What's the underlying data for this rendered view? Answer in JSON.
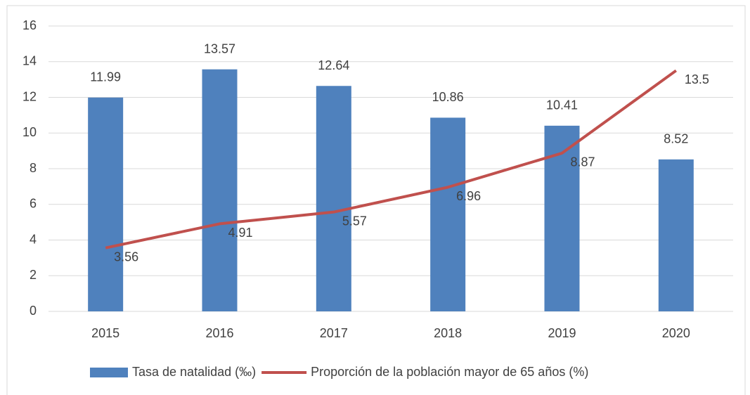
{
  "chart_data": {
    "type": "bar",
    "categories": [
      "2015",
      "2016",
      "2017",
      "2018",
      "2019",
      "2020"
    ],
    "series": [
      {
        "name": "Tasa de natalidad (‰)",
        "type": "bar",
        "color": "#4f81bd",
        "values": [
          11.99,
          13.57,
          12.64,
          10.86,
          10.41,
          8.52
        ]
      },
      {
        "name": "Proporción de la población mayor de 65 años (%)",
        "type": "line",
        "color": "#c0504d",
        "values": [
          3.56,
          4.91,
          5.57,
          6.96,
          8.87,
          13.5
        ]
      }
    ],
    "ylim": [
      0,
      16
    ],
    "yticks": [
      0,
      2,
      4,
      6,
      8,
      10,
      12,
      14,
      16
    ],
    "grid": true,
    "legend": "bottom"
  }
}
